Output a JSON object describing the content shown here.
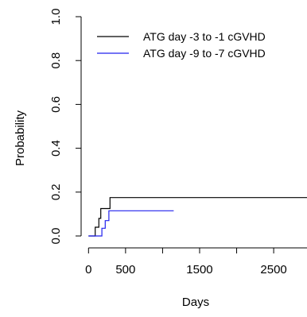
{
  "chart_data": {
    "type": "line",
    "title": "",
    "xlabel": "Days",
    "ylabel": "Probability",
    "xlim": [
      -100,
      2950
    ],
    "ylim": [
      0.0,
      1.0
    ],
    "x_ticks": [
      0,
      500,
      1500,
      2500
    ],
    "x_tick_labels": [
      "0",
      "500",
      "1500",
      "2500"
    ],
    "x_minor_ticks": [
      1000,
      2000
    ],
    "y_ticks": [
      0.0,
      0.2,
      0.4,
      0.6,
      0.8,
      1.0
    ],
    "y_tick_labels": [
      "0.0",
      "0.2",
      "0.4",
      "0.6",
      "0.8",
      "1.0"
    ],
    "grid": false,
    "legend_position": "top-right",
    "series": [
      {
        "name": "ATG day -3 to -1 cGVHD",
        "color": "#000000",
        "step": true,
        "points": [
          [
            0,
            0.0
          ],
          [
            90,
            0.0
          ],
          [
            90,
            0.04
          ],
          [
            140,
            0.04
          ],
          [
            140,
            0.08
          ],
          [
            165,
            0.08
          ],
          [
            165,
            0.125
          ],
          [
            290,
            0.125
          ],
          [
            290,
            0.175
          ],
          [
            2950,
            0.175
          ]
        ]
      },
      {
        "name": "ATG day -9 to -7 cGVHD",
        "color": "#2020ee",
        "step": true,
        "points": [
          [
            0,
            0.0
          ],
          [
            180,
            0.0
          ],
          [
            180,
            0.035
          ],
          [
            225,
            0.035
          ],
          [
            225,
            0.07
          ],
          [
            275,
            0.07
          ],
          [
            275,
            0.115
          ],
          [
            1150,
            0.115
          ]
        ]
      }
    ]
  }
}
